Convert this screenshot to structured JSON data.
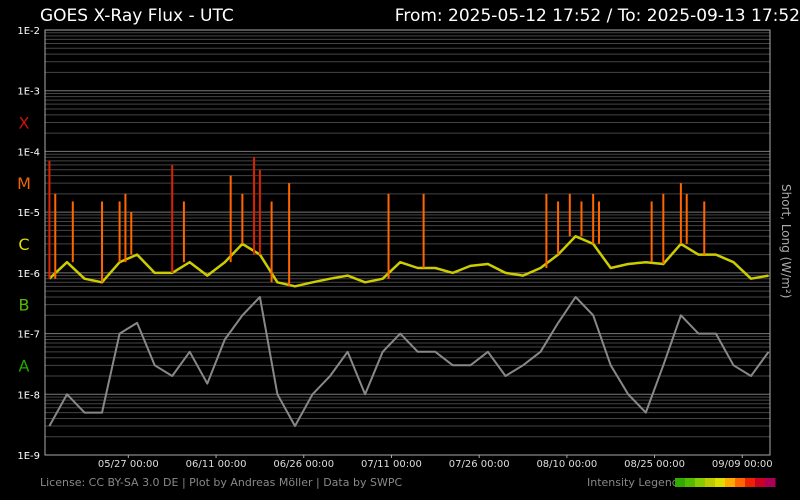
{
  "header": {
    "title": "GOES X-Ray Flux - UTC",
    "range": "From: 2025-05-12 17:52  /  To: 2025-09-13 17:52"
  },
  "footer": {
    "license": "License: CC BY-SA 3.0 DE | Plot by Andreas Möller | Data by SWPC",
    "legend_label": "Intensity Legend",
    "legend_colors": [
      "#33aa00",
      "#55bb00",
      "#88cc00",
      "#bbcc00",
      "#dddd00",
      "#ffaa00",
      "#ff6600",
      "#ee2200",
      "#cc0022",
      "#aa0055"
    ]
  },
  "chart_data": {
    "type": "line",
    "title": "GOES X-Ray Flux - UTC",
    "ylabel": "Short, Long (W/m²)",
    "yscale": "log",
    "ylim": [
      1e-09,
      0.01
    ],
    "y_ticks": [
      "1E-2",
      "1E-3",
      "1E-4",
      "1E-5",
      "1E-6",
      "1E-7",
      "1E-8",
      "1E-9"
    ],
    "flare_classes": [
      {
        "label": "X",
        "color": "#cc1111",
        "flux": 0.0003
      },
      {
        "label": "M",
        "color": "#ee6600",
        "flux": 3e-05
      },
      {
        "label": "C",
        "color": "#dddd00",
        "flux": 3e-06
      },
      {
        "label": "B",
        "color": "#55bb00",
        "flux": 3e-07
      },
      {
        "label": "A",
        "color": "#22aa00",
        "flux": 3e-08
      }
    ],
    "x_ticks": [
      "05/27 00:00",
      "06/11 00:00",
      "06/26 00:00",
      "07/11 00:00",
      "07/26 00:00",
      "08/10 00:00",
      "08/25 00:00",
      "09/09 00:00"
    ],
    "grid": true,
    "series": [
      {
        "color": "#cccc00",
        "x": [
          "05-13",
          "05-16",
          "05-19",
          "05-22",
          "05-25",
          "05-28",
          "05-31",
          "06-03",
          "06-06",
          "06-09",
          "06-12",
          "06-15",
          "06-18",
          "06-21",
          "06-24",
          "06-27",
          "06-30",
          "07-03",
          "07-06",
          "07-09",
          "07-12",
          "07-15",
          "07-18",
          "07-21",
          "07-24",
          "07-27",
          "07-30",
          "08-02",
          "08-05",
          "08-08",
          "08-11",
          "08-14",
          "08-17",
          "08-20",
          "08-23",
          "08-26",
          "08-29",
          "09-01",
          "09-04",
          "09-07",
          "09-10",
          "09-13"
        ],
        "values": [
          8e-07,
          1.5e-06,
          8e-07,
          7e-07,
          1.5e-06,
          2e-06,
          1e-06,
          1e-06,
          1.5e-06,
          9e-07,
          1.5e-06,
          3e-06,
          2e-06,
          7e-07,
          6e-07,
          7e-07,
          8e-07,
          9e-07,
          7e-07,
          8e-07,
          1.5e-06,
          1.2e-06,
          1.2e-06,
          1e-06,
          1.3e-06,
          1.4e-06,
          1e-06,
          9e-07,
          1.2e-06,
          2e-06,
          4e-06,
          3e-06,
          1.2e-06,
          1.4e-06,
          1.5e-06,
          1.4e-06,
          3e-06,
          2e-06,
          2e-06,
          1.5e-06,
          8e-07,
          9e-07
        ]
      },
      {
        "color": "#888888",
        "x": [
          "05-13",
          "05-16",
          "05-19",
          "05-22",
          "05-25",
          "05-28",
          "05-31",
          "06-03",
          "06-06",
          "06-09",
          "06-12",
          "06-15",
          "06-18",
          "06-21",
          "06-24",
          "06-27",
          "06-30",
          "07-03",
          "07-06",
          "07-09",
          "07-12",
          "07-15",
          "07-18",
          "07-21",
          "07-24",
          "07-27",
          "07-30",
          "08-02",
          "08-05",
          "08-08",
          "08-11",
          "08-14",
          "08-17",
          "08-20",
          "08-23",
          "08-26",
          "08-29",
          "09-01",
          "09-04",
          "09-07",
          "09-10",
          "09-13"
        ],
        "values": [
          3e-09,
          1e-08,
          5e-09,
          5e-09,
          1e-07,
          1.5e-07,
          3e-08,
          2e-08,
          5e-08,
          1.5e-08,
          8e-08,
          2e-07,
          4e-07,
          1e-08,
          3e-09,
          1e-08,
          2e-08,
          5e-08,
          1e-08,
          5e-08,
          1e-07,
          5e-08,
          5e-08,
          3e-08,
          3e-08,
          5e-08,
          2e-08,
          3e-08,
          5e-08,
          1.5e-07,
          4e-07,
          2e-07,
          3e-08,
          1e-08,
          5e-09,
          3e-08,
          2e-07,
          1e-07,
          1e-07,
          3e-08,
          2e-08,
          5e-08
        ]
      }
    ],
    "peaks": [
      {
        "x": "05-13",
        "value": 7e-05
      },
      {
        "x": "05-14",
        "value": 2e-05
      },
      {
        "x": "05-17",
        "value": 1.5e-05
      },
      {
        "x": "05-22",
        "value": 1.5e-05
      },
      {
        "x": "05-25",
        "value": 1.5e-05
      },
      {
        "x": "05-26",
        "value": 2e-05
      },
      {
        "x": "05-27",
        "value": 1e-05
      },
      {
        "x": "06-03",
        "value": 6e-05
      },
      {
        "x": "06-05",
        "value": 1.5e-05
      },
      {
        "x": "06-13",
        "value": 4e-05
      },
      {
        "x": "06-15",
        "value": 2e-05
      },
      {
        "x": "06-17",
        "value": 8e-05
      },
      {
        "x": "06-18",
        "value": 5e-05
      },
      {
        "x": "06-20",
        "value": 1.5e-05
      },
      {
        "x": "06-23",
        "value": 3e-05
      },
      {
        "x": "07-10",
        "value": 2e-05
      },
      {
        "x": "07-16",
        "value": 2e-05
      },
      {
        "x": "08-06",
        "value": 2e-05
      },
      {
        "x": "08-08",
        "value": 1.5e-05
      },
      {
        "x": "08-10",
        "value": 2e-05
      },
      {
        "x": "08-12",
        "value": 1.5e-05
      },
      {
        "x": "08-14",
        "value": 2e-05
      },
      {
        "x": "08-15",
        "value": 1.5e-05
      },
      {
        "x": "08-24",
        "value": 1.5e-05
      },
      {
        "x": "08-26",
        "value": 2e-05
      },
      {
        "x": "08-29",
        "value": 3e-05
      },
      {
        "x": "08-30",
        "value": 2e-05
      },
      {
        "x": "09-02",
        "value": 1.5e-05
      }
    ]
  }
}
